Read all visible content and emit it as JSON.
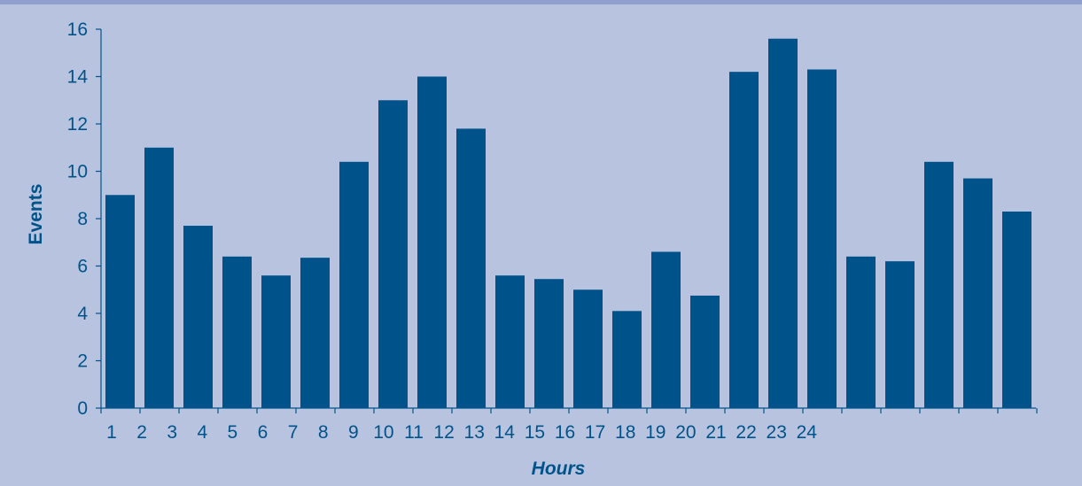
{
  "chart_data": {
    "type": "bar",
    "categories": [
      "1",
      "2",
      "3",
      "4",
      "5",
      "6",
      "7",
      "8",
      "9",
      "10",
      "11",
      "12",
      "13",
      "14",
      "15",
      "16",
      "17",
      "18",
      "19",
      "20",
      "21",
      "22",
      "23",
      "24"
    ],
    "values": [
      9.0,
      11.0,
      7.7,
      6.4,
      5.6,
      6.35,
      10.4,
      13.0,
      14.0,
      11.8,
      5.6,
      5.45,
      5.0,
      4.1,
      6.6,
      4.75,
      14.2,
      15.6,
      14.3,
      6.4,
      6.2,
      10.4,
      9.7,
      8.3
    ],
    "xlabel": "Hours",
    "ylabel": "Events",
    "ylim": [
      0,
      16
    ],
    "yticks": [
      0,
      2,
      4,
      6,
      8,
      10,
      12,
      14,
      16
    ],
    "grid": false,
    "colors": {
      "bar": "#00538a",
      "background": "#b8c4df",
      "axis": "#00538a",
      "top_rule": "#8fa0cf"
    }
  }
}
